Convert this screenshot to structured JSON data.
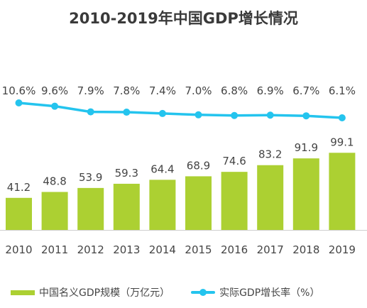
{
  "title": "2010-2019年中国GDP增长情况",
  "chart_data": {
    "type": "bar+line",
    "categories": [
      "2010",
      "2011",
      "2012",
      "2013",
      "2014",
      "2015",
      "2016",
      "2017",
      "2018",
      "2019"
    ],
    "series": [
      {
        "name": "中国名义GDP规模（万亿元）",
        "type": "bar",
        "color": "#acd032",
        "values": [
          41.2,
          48.8,
          53.9,
          59.3,
          64.4,
          68.9,
          74.6,
          83.2,
          91.9,
          99.1
        ]
      },
      {
        "name": "实际GDP增长率（%）",
        "type": "line",
        "color": "#24c4ee",
        "values": [
          10.6,
          9.6,
          7.9,
          7.8,
          7.4,
          7.0,
          6.8,
          6.9,
          6.7,
          6.1
        ],
        "labels": [
          "10.6%",
          "9.6%",
          "7.9%",
          "7.8%",
          "7.4%",
          "7.0%",
          "6.8%",
          "6.9%",
          "6.7%",
          "6.1%"
        ]
      }
    ],
    "grid": false,
    "legend_position": "bottom"
  }
}
